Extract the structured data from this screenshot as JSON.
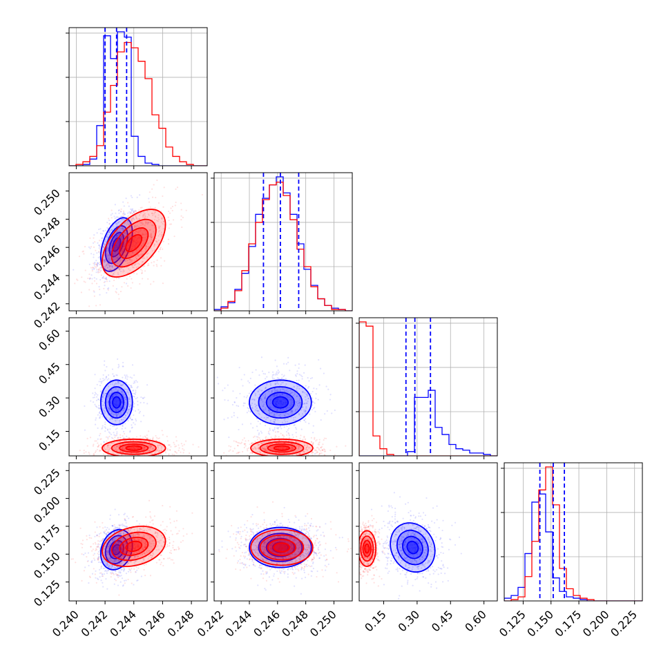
{
  "colors": {
    "series_a": "#0000ff",
    "series_b": "#ff0000",
    "grid": "#b0b0b0"
  },
  "chart_data": {
    "type": "corner",
    "n_params": 4,
    "grid": true,
    "series": [
      {
        "color": "#0000ff",
        "hist_style": "step",
        "contours": true,
        "scatter": true
      },
      {
        "color": "#ff0000",
        "hist_style": "step",
        "contours": true,
        "scatter": true
      }
    ],
    "params": [
      {
        "range": [
          0.2395,
          0.2491
        ],
        "ticks": [
          0.24,
          0.242,
          0.244,
          0.246,
          0.248
        ],
        "tick_labels": [
          "0.240",
          "0.242",
          "0.244",
          "0.246",
          "0.248"
        ]
      },
      {
        "range": [
          0.2415,
          0.2513
        ],
        "ticks": [
          0.242,
          0.244,
          0.246,
          0.248,
          0.25
        ],
        "tick_labels": [
          "0.242",
          "0.244",
          "0.246",
          "0.248",
          "0.250"
        ]
      },
      {
        "range": [
          0.04,
          0.66
        ],
        "ticks": [
          0.15,
          0.3,
          0.45,
          0.6
        ],
        "tick_labels": [
          "0.15",
          "0.30",
          "0.45",
          "0.60"
        ]
      },
      {
        "range": [
          0.108,
          0.232
        ],
        "ticks": [
          0.125,
          0.15,
          0.175,
          0.2,
          0.225
        ],
        "tick_labels": [
          "0.125",
          "0.150",
          "0.175",
          "0.200",
          "0.225"
        ]
      }
    ],
    "quantiles": [
      [
        0.242,
        0.2428,
        0.2435
      ],
      [
        0.245,
        0.2462,
        0.2475
      ],
      [
        0.25,
        0.29,
        0.36
      ],
      [
        0.14,
        0.152,
        0.162
      ]
    ],
    "histograms": [
      {
        "series_a": [
          0,
          0,
          0.01,
          0.05,
          0.3,
          0.97,
          0.8,
          1.0,
          0.96,
          0.22,
          0.07,
          0.02,
          0.01,
          0,
          0,
          0,
          0,
          0,
          0,
          0
        ],
        "series_b": [
          0,
          0.01,
          0.03,
          0.07,
          0.15,
          0.4,
          0.6,
          0.85,
          0.92,
          0.88,
          0.78,
          0.65,
          0.38,
          0.28,
          0.14,
          0.07,
          0.03,
          0.01,
          0,
          0
        ]
      },
      {
        "series_a": [
          0.01,
          0.03,
          0.06,
          0.16,
          0.28,
          0.48,
          0.72,
          0.84,
          0.94,
          1.0,
          0.88,
          0.72,
          0.5,
          0.31,
          0.19,
          0.09,
          0.04,
          0.02,
          0.01,
          0
        ],
        "series_b": [
          0,
          0.02,
          0.07,
          0.15,
          0.3,
          0.5,
          0.66,
          0.83,
          0.94,
          0.96,
          0.86,
          0.68,
          0.46,
          0.33,
          0.18,
          0.09,
          0.04,
          0.01,
          0.01,
          0
        ]
      },
      {
        "series_a": [
          0,
          0,
          0,
          0,
          0,
          0,
          0,
          0.03,
          0.41,
          0.41,
          0.46,
          0.2,
          0.15,
          0.08,
          0.05,
          0.04,
          0.02,
          0.02,
          0.01,
          0
        ],
        "series_b": [
          0.94,
          0.91,
          0.14,
          0.05,
          0.01,
          0,
          0,
          0,
          0,
          0,
          0,
          0,
          0,
          0,
          0,
          0,
          0,
          0,
          0,
          0
        ]
      },
      {
        "series_a": [
          0.02,
          0.04,
          0.1,
          0.35,
          0.73,
          0.79,
          0.51,
          0.17,
          0.07,
          0.03,
          0.02,
          0.01,
          0,
          0,
          0,
          0,
          0,
          0,
          0,
          0
        ],
        "series_b": [
          0,
          0.01,
          0.03,
          0.18,
          0.44,
          0.82,
          0.99,
          0.71,
          0.24,
          0.09,
          0.04,
          0.02,
          0.01,
          0,
          0,
          0,
          0,
          0,
          0,
          0
        ]
      }
    ],
    "blobs": {
      "1-0": {
        "series_a": {
          "mean": [
            0.2428,
            0.2462
          ],
          "sd": [
            0.00055,
            0.00095
          ],
          "rho": 0.45
        },
        "series_b": {
          "mean": [
            0.244,
            0.2463
          ],
          "sd": [
            0.0011,
            0.0012
          ],
          "rho": 0.55
        }
      },
      "2-0": {
        "series_a": {
          "mean": [
            0.2428,
            0.28
          ],
          "sd": [
            0.00055,
            0.05
          ],
          "rho": 0.0
        },
        "series_b": {
          "mean": [
            0.244,
            0.075
          ],
          "sd": [
            0.0011,
            0.02
          ],
          "rho": 0.0
        }
      },
      "2-1": {
        "series_a": {
          "mean": [
            0.2462,
            0.28
          ],
          "sd": [
            0.0011,
            0.05
          ],
          "rho": 0.0
        },
        "series_b": {
          "mean": [
            0.2463,
            0.075
          ],
          "sd": [
            0.0011,
            0.02
          ],
          "rho": 0.0
        }
      },
      "3-0": {
        "series_a": {
          "mean": [
            0.2428,
            0.154
          ],
          "sd": [
            0.00055,
            0.009
          ],
          "rho": 0.2
        },
        "series_b": {
          "mean": [
            0.244,
            0.157
          ],
          "sd": [
            0.0011,
            0.009
          ],
          "rho": 0.25
        }
      },
      "3-1": {
        "series_a": {
          "mean": [
            0.2462,
            0.156
          ],
          "sd": [
            0.0011,
            0.009
          ],
          "rho": 0.0
        },
        "series_b": {
          "mean": [
            0.2463,
            0.156
          ],
          "sd": [
            0.0011,
            0.008
          ],
          "rho": 0.0
        }
      },
      "3-2": {
        "series_a": {
          "mean": [
            0.28,
            0.156
          ],
          "sd": [
            0.05,
            0.011
          ],
          "rho": -0.15
        },
        "series_b": {
          "mean": [
            0.075,
            0.155
          ],
          "sd": [
            0.02,
            0.008
          ],
          "rho": 0.0
        }
      }
    }
  }
}
